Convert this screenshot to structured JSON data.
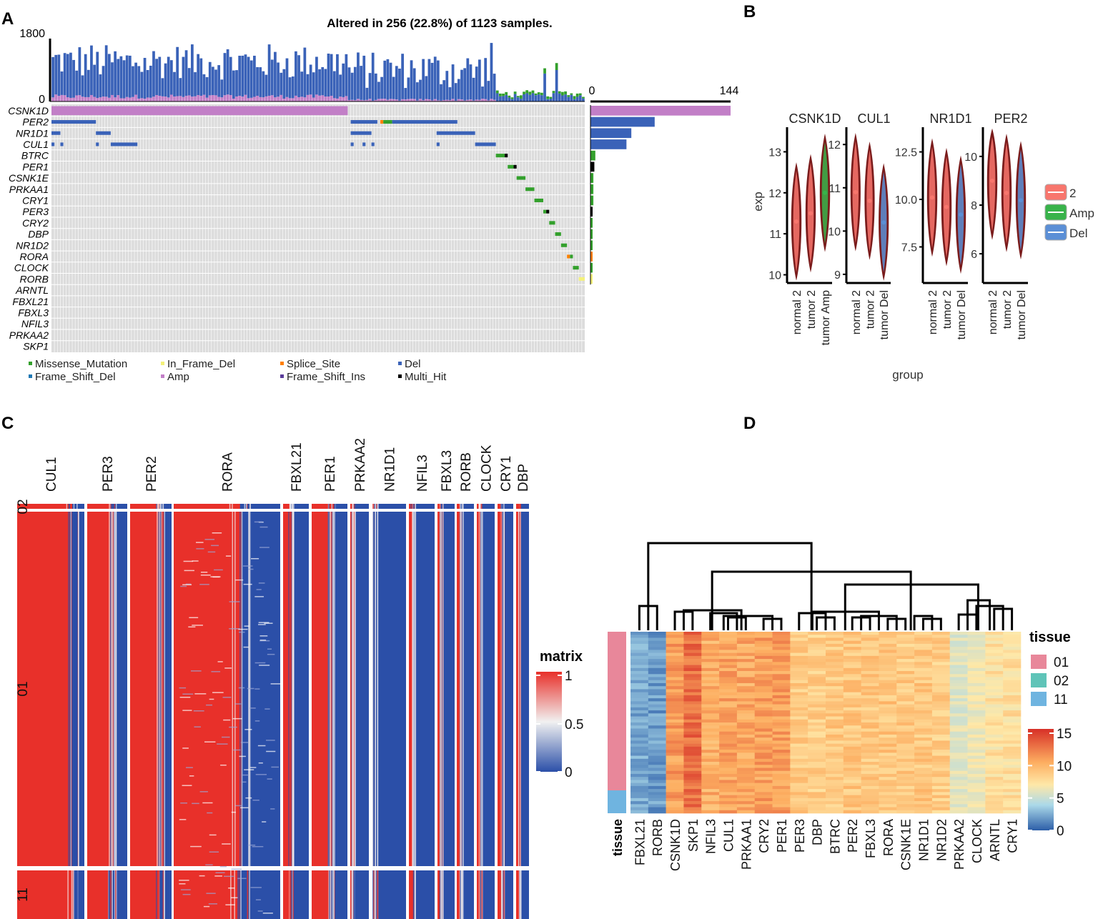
{
  "chart_data": [
    {
      "panel": "A",
      "type": "oncoplot",
      "title": "Altered in 256 (22.8%) of 1123 samples.",
      "tmb_axis": {
        "min": 0,
        "max": 1800,
        "min_label": "0",
        "max_label": "1800"
      },
      "freq_axis": {
        "min": 0,
        "max": 144,
        "min_label": "0",
        "max_label": "144"
      },
      "genes": [
        "CSNK1D",
        "PER2",
        "NR1D1",
        "CUL1",
        "BTRC",
        "PER1",
        "CSNK1E",
        "PRKAA1",
        "CRY1",
        "PER3",
        "CRY2",
        "DBP",
        "NR1D2",
        "RORA",
        "CLOCK",
        "RORB",
        "ARNTL",
        "FBXL21",
        "FBXL3",
        "NFIL3",
        "PRKAA2",
        "SKP1"
      ],
      "gene_alteration_counts": [
        144,
        66,
        42,
        37,
        5,
        4,
        3,
        3,
        3,
        2,
        2,
        2,
        2,
        2,
        2,
        2,
        0,
        0,
        0,
        0,
        0,
        0
      ],
      "dominant_alteration": [
        "Amp",
        "Del",
        "Del",
        "Del",
        "Missense_Mutation",
        "Multi_Hit",
        "Missense_Mutation",
        "Missense_Mutation",
        "Missense_Mutation",
        "Multi_Hit",
        "Missense_Mutation",
        "Missense_Mutation",
        "Missense_Mutation",
        "Splice_Site",
        "Missense_Mutation",
        "In_Frame_Del",
        "",
        "",
        "",
        "",
        "",
        ""
      ],
      "legend": [
        {
          "name": "Missense_Mutation",
          "color": "#33a02c"
        },
        {
          "name": "In_Frame_Del",
          "color": "#f4f17a"
        },
        {
          "name": "Splice_Site",
          "color": "#ff7f00"
        },
        {
          "name": "Del",
          "color": "#3a62b8"
        },
        {
          "name": "Frame_Shift_Del",
          "color": "#1f78b4"
        },
        {
          "name": "Amp",
          "color": "#c27fc7"
        },
        {
          "name": "Frame_Shift_Ins",
          "color": "#5a3c9a"
        },
        {
          "name": "Multi_Hit",
          "color": "#000000"
        }
      ]
    },
    {
      "panel": "B",
      "type": "violin",
      "ylabel": "exp",
      "xlabel": "group",
      "legend": [
        {
          "name": "2",
          "color": "#f8766d"
        },
        {
          "name": "Amp",
          "color": "#38b34a"
        },
        {
          "name": "Del",
          "color": "#5b8fd6"
        }
      ],
      "facets": [
        {
          "gene": "CSNK1D",
          "groups": [
            "normal 2",
            "tumor 2",
            "tumor Amp"
          ],
          "ylim": [
            9.8,
            13.6
          ],
          "ticks": [
            "10",
            "11",
            "12",
            "13"
          ],
          "tick_values": [
            10,
            11,
            12,
            13
          ],
          "medians": [
            11.3,
            11.5,
            12.0
          ]
        },
        {
          "gene": "CUL1",
          "groups": [
            "normal 2",
            "tumor 2",
            "tumor Del"
          ],
          "ylim": [
            8.8,
            12.4
          ],
          "ticks": [
            "9",
            "10",
            "11",
            "12"
          ],
          "tick_values": [
            9,
            10,
            11,
            12
          ],
          "medians": [
            10.9,
            10.7,
            10.2
          ]
        },
        {
          "gene": "NR1D1",
          "groups": [
            "normal 2",
            "tumor 2",
            "tumor Del"
          ],
          "ylim": [
            5.6,
            13.8
          ],
          "ticks": [
            "7.5",
            "10.0",
            "12.5"
          ],
          "tick_values": [
            7.5,
            10.0,
            12.5
          ],
          "medians": [
            10.1,
            9.6,
            9.2
          ]
        },
        {
          "gene": "PER2",
          "groups": [
            "normal 2",
            "tumor 2",
            "tumor Del"
          ],
          "ylim": [
            4.8,
            11.2
          ],
          "ticks": [
            "6",
            "8",
            "10"
          ],
          "tick_values": [
            6,
            8,
            10
          ],
          "medians": [
            9.0,
            8.5,
            8.2
          ]
        }
      ]
    },
    {
      "panel": "C",
      "type": "heatmap",
      "legend_title": "matrix",
      "color_scale": {
        "min": 0,
        "mid": 0.5,
        "max": 1,
        "labels": [
          "1",
          "0.5",
          "0"
        ],
        "colors": [
          "#e8302a",
          "#f3f3f3",
          "#2b4fa8"
        ]
      },
      "column_groups": [
        "CUL1",
        "PER3",
        "PER2",
        "RORA",
        "FBXL21",
        "PER1",
        "PRKAA2",
        "NR1D1",
        "NFIL3",
        "FBXL3",
        "RORB",
        "CLOCK",
        "CRY1",
        "DBP"
      ],
      "row_groups": [
        "02",
        "01",
        "11"
      ]
    },
    {
      "panel": "D",
      "type": "heatmap",
      "columns": [
        "FBXL21",
        "RORB",
        "CSNK1D",
        "SKP1",
        "NFIL3",
        "CUL1",
        "PRKAA1",
        "CRY2",
        "PER1",
        "PER3",
        "DBP",
        "BTRC",
        "PER2",
        "FBXL3",
        "RORA",
        "CSNK1E",
        "NR1D1",
        "NR1D2",
        "PRKAA2",
        "CLOCK",
        "ARNTL",
        "CRY1"
      ],
      "column_mean_expression": [
        2.5,
        2.0,
        11.5,
        13.0,
        10.8,
        11.2,
        11.0,
        11.3,
        11.4,
        9.5,
        9.3,
        9.6,
        9.7,
        9.6,
        9.8,
        9.5,
        9.7,
        9.4,
        6.5,
        7.2,
        8.3,
        8.4
      ],
      "annotation_label": "tissue",
      "annotation_legend": [
        {
          "name": "01",
          "color": "#e8879a"
        },
        {
          "name": "02",
          "color": "#5fc4b8"
        },
        {
          "name": "11",
          "color": "#6fb4e0"
        }
      ],
      "color_scale": {
        "min": 0,
        "max": 15,
        "labels": [
          "15",
          "10",
          "5",
          "0"
        ],
        "tick_values": [
          15,
          10,
          5,
          0
        ]
      }
    }
  ],
  "panels": {
    "a": "A",
    "b": "B",
    "c": "C",
    "d": "D"
  }
}
